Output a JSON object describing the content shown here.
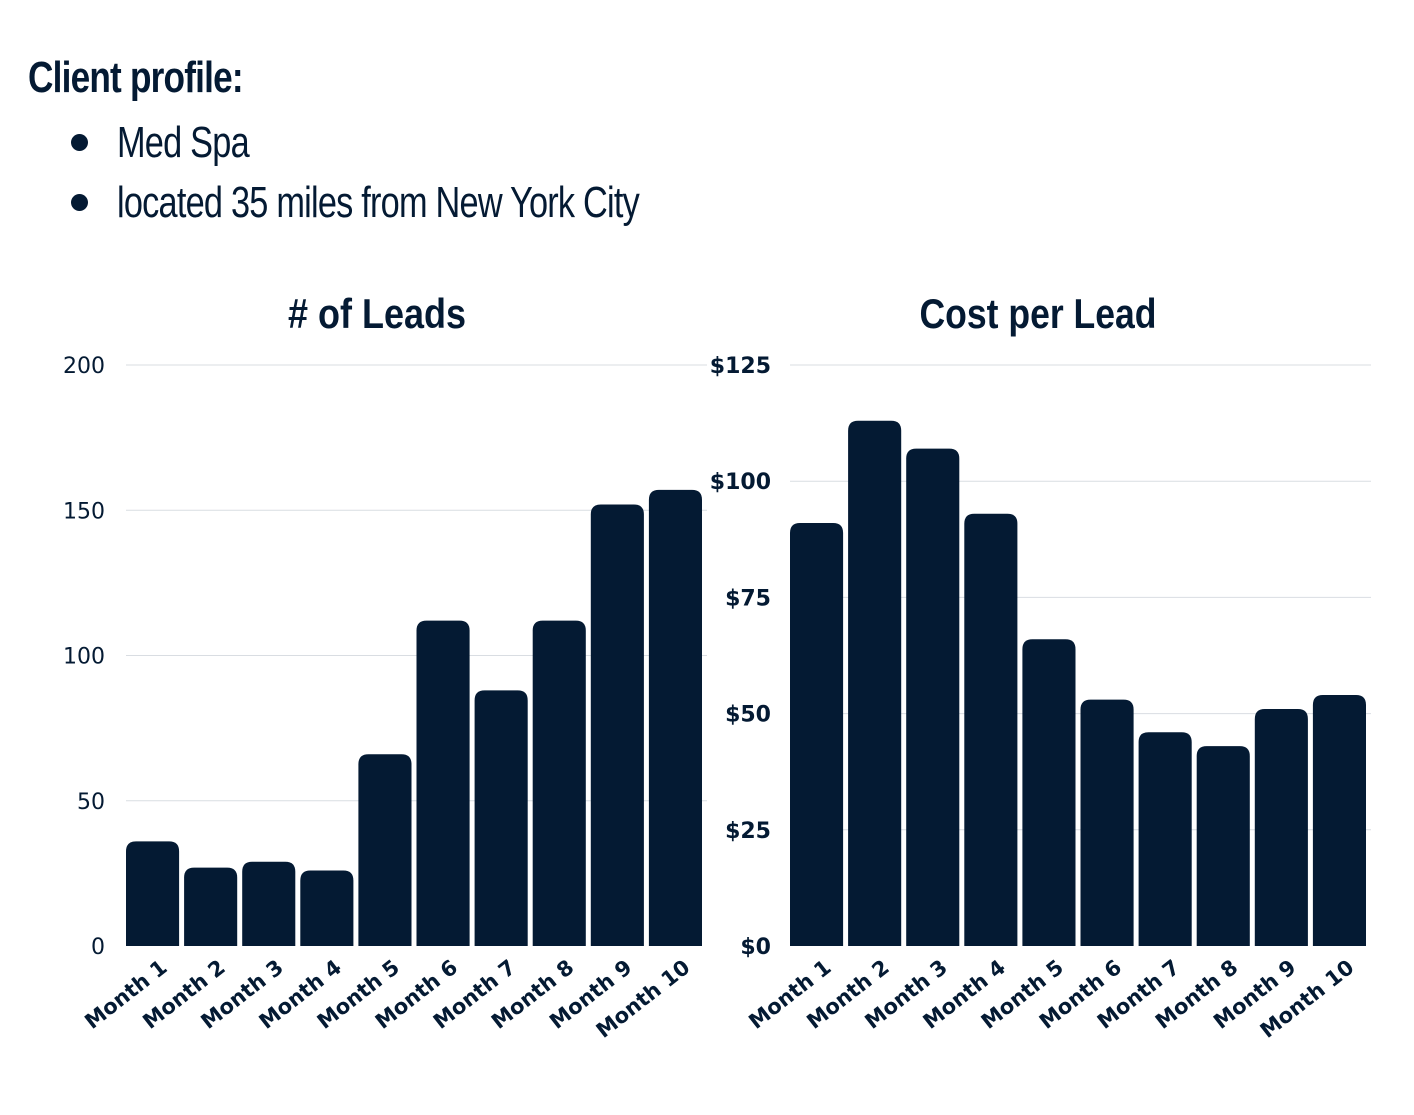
{
  "profile": {
    "title": "Client profile:",
    "items": [
      "Med Spa",
      "located 35 miles from New York City"
    ]
  },
  "colors": {
    "bar": "#041a33",
    "text": "#041a33",
    "grid": "#d9dde2",
    "background": "#ffffff"
  },
  "chart_data": [
    {
      "type": "bar",
      "title": "# of Leads",
      "categories": [
        "Month 1",
        "Month 2",
        "Month 3",
        "Month 4",
        "Month 5",
        "Month 6",
        "Month 7",
        "Month 8",
        "Month 9",
        "Month 10"
      ],
      "values": [
        36,
        27,
        29,
        26,
        66,
        112,
        88,
        112,
        152,
        157
      ],
      "ylim": [
        0,
        200
      ],
      "yticks": [
        0,
        50,
        100,
        150,
        200
      ],
      "ytick_labels": [
        "0",
        "50",
        "100",
        "150",
        "200"
      ],
      "xlabel": "",
      "ylabel": "",
      "grid": true
    },
    {
      "type": "bar",
      "title": "Cost per Lead",
      "categories": [
        "Month 1",
        "Month 2",
        "Month 3",
        "Month 4",
        "Month 5",
        "Month 6",
        "Month 7",
        "Month 8",
        "Month 9",
        "Month 10"
      ],
      "values": [
        91,
        113,
        107,
        93,
        66,
        53,
        46,
        43,
        51,
        54
      ],
      "ylim": [
        0,
        125
      ],
      "yticks": [
        0,
        25,
        50,
        75,
        100,
        125
      ],
      "ytick_labels": [
        "$0",
        "$25",
        "$50",
        "$75",
        "$100",
        "$125"
      ],
      "xlabel": "",
      "ylabel": "",
      "grid": true
    }
  ]
}
